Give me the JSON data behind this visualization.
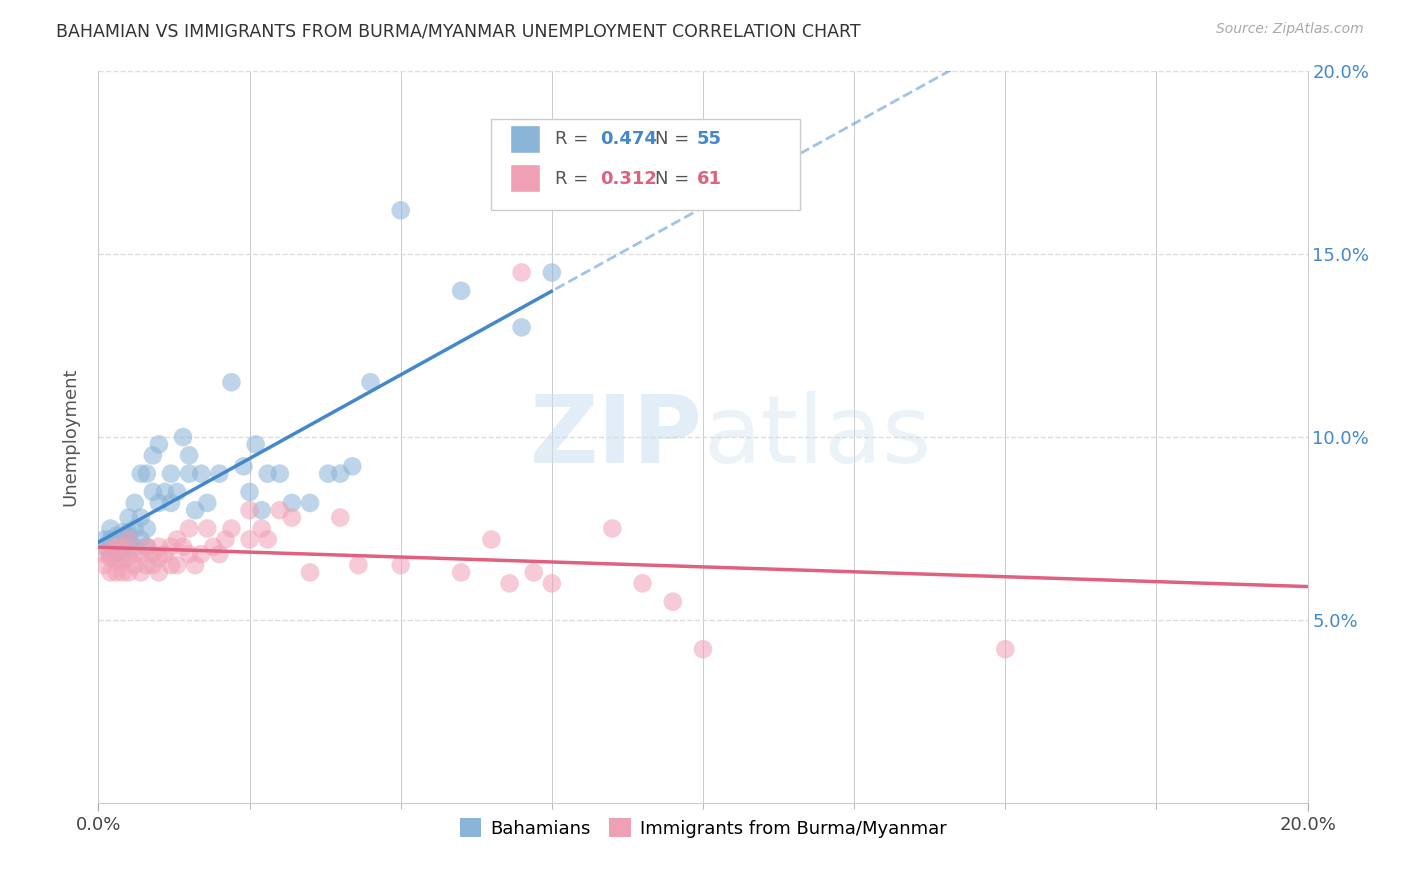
{
  "title": "BAHAMIAN VS IMMIGRANTS FROM BURMA/MYANMAR UNEMPLOYMENT CORRELATION CHART",
  "source": "Source: ZipAtlas.com",
  "ylabel": "Unemployment",
  "xmin": 0.0,
  "xmax": 0.2,
  "ymin": 0.0,
  "ymax": 0.2,
  "xtick_major": [
    0.0,
    0.2
  ],
  "xtick_minor": [
    0.025,
    0.05,
    0.075,
    0.1,
    0.125,
    0.15,
    0.175
  ],
  "ytick_vals": [
    0.05,
    0.1,
    0.15,
    0.2
  ],
  "ytick_labels": [
    "5.0%",
    "10.0%",
    "15.0%",
    "20.0%"
  ],
  "blue_color": "#8ab4d8",
  "pink_color": "#f0a0b5",
  "blue_line_color": "#4488cc",
  "pink_line_color": "#e06080",
  "legend_label_blue": "Bahamians",
  "legend_label_pink": "Immigrants from Burma/Myanmar",
  "blue_R": "0.474",
  "blue_N": "55",
  "pink_R": "0.312",
  "pink_N": "61",
  "blue_scatter_x": [
    0.001,
    0.001,
    0.002,
    0.002,
    0.002,
    0.003,
    0.003,
    0.004,
    0.004,
    0.004,
    0.005,
    0.005,
    0.005,
    0.005,
    0.006,
    0.006,
    0.006,
    0.007,
    0.007,
    0.007,
    0.008,
    0.008,
    0.008,
    0.009,
    0.009,
    0.01,
    0.01,
    0.011,
    0.012,
    0.012,
    0.013,
    0.014,
    0.015,
    0.015,
    0.016,
    0.017,
    0.018,
    0.02,
    0.022,
    0.024,
    0.025,
    0.026,
    0.027,
    0.028,
    0.03,
    0.032,
    0.035,
    0.038,
    0.04,
    0.042,
    0.045,
    0.05,
    0.06,
    0.07,
    0.075
  ],
  "blue_scatter_y": [
    0.07,
    0.072,
    0.068,
    0.072,
    0.075,
    0.068,
    0.073,
    0.068,
    0.07,
    0.074,
    0.071,
    0.073,
    0.074,
    0.078,
    0.07,
    0.075,
    0.082,
    0.072,
    0.078,
    0.09,
    0.07,
    0.075,
    0.09,
    0.085,
    0.095,
    0.082,
    0.098,
    0.085,
    0.082,
    0.09,
    0.085,
    0.1,
    0.09,
    0.095,
    0.08,
    0.09,
    0.082,
    0.09,
    0.115,
    0.092,
    0.085,
    0.098,
    0.08,
    0.09,
    0.09,
    0.082,
    0.082,
    0.09,
    0.09,
    0.092,
    0.115,
    0.162,
    0.14,
    0.13,
    0.145
  ],
  "pink_scatter_x": [
    0.001,
    0.001,
    0.002,
    0.002,
    0.002,
    0.003,
    0.003,
    0.003,
    0.004,
    0.004,
    0.004,
    0.005,
    0.005,
    0.005,
    0.006,
    0.006,
    0.007,
    0.007,
    0.008,
    0.008,
    0.009,
    0.009,
    0.01,
    0.01,
    0.01,
    0.011,
    0.012,
    0.012,
    0.013,
    0.013,
    0.014,
    0.015,
    0.015,
    0.016,
    0.017,
    0.018,
    0.019,
    0.02,
    0.021,
    0.022,
    0.025,
    0.025,
    0.027,
    0.028,
    0.03,
    0.032,
    0.035,
    0.04,
    0.043,
    0.05,
    0.06,
    0.065,
    0.068,
    0.07,
    0.072,
    0.075,
    0.085,
    0.09,
    0.095,
    0.1,
    0.15
  ],
  "pink_scatter_y": [
    0.065,
    0.068,
    0.063,
    0.067,
    0.069,
    0.063,
    0.066,
    0.07,
    0.063,
    0.066,
    0.07,
    0.063,
    0.067,
    0.072,
    0.065,
    0.068,
    0.063,
    0.068,
    0.065,
    0.07,
    0.065,
    0.068,
    0.063,
    0.067,
    0.07,
    0.068,
    0.065,
    0.07,
    0.065,
    0.072,
    0.07,
    0.068,
    0.075,
    0.065,
    0.068,
    0.075,
    0.07,
    0.068,
    0.072,
    0.075,
    0.072,
    0.08,
    0.075,
    0.072,
    0.08,
    0.078,
    0.063,
    0.078,
    0.065,
    0.065,
    0.063,
    0.072,
    0.06,
    0.145,
    0.063,
    0.06,
    0.075,
    0.06,
    0.055,
    0.042,
    0.042
  ],
  "watermark_text": "ZIPatlas",
  "background_color": "#ffffff",
  "grid_color": "#dddddd"
}
